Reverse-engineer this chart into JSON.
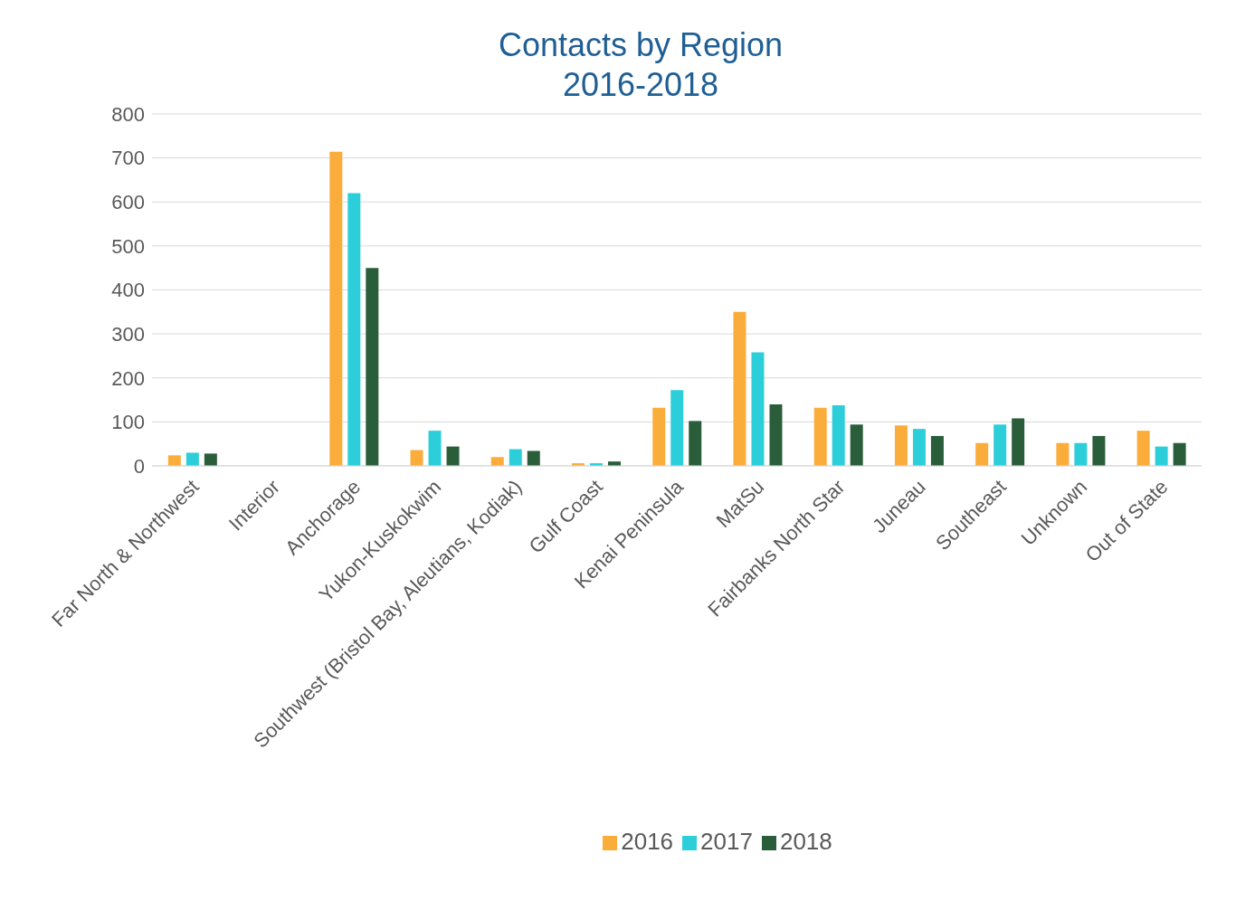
{
  "chart_data": {
    "type": "bar",
    "title": "Contacts by Region",
    "subtitle": "2016-2018",
    "categories": [
      "Far North & Northwest",
      "Interior",
      "Anchorage",
      "Yukon-Kuskokwim",
      "Southwest (Bristol Bay, Aleutians, Kodiak)",
      "Gulf Coast",
      "Kenai Peninsula",
      "MatSu",
      "Fairbanks North Star",
      "Juneau",
      "Southeast",
      "Unknown",
      "Out of State"
    ],
    "series": [
      {
        "name": "2016",
        "color": "#fbad3c",
        "values": [
          24,
          0,
          714,
          36,
          20,
          6,
          132,
          350,
          132,
          92,
          52,
          52,
          80
        ]
      },
      {
        "name": "2017",
        "color": "#2ccfd9",
        "values": [
          30,
          0,
          620,
          80,
          38,
          6,
          172,
          258,
          138,
          84,
          94,
          52,
          44
        ]
      },
      {
        "name": "2018",
        "color": "#2a5e3b",
        "values": [
          28,
          0,
          450,
          44,
          34,
          10,
          102,
          140,
          94,
          68,
          108,
          68,
          52
        ]
      }
    ],
    "ylim": [
      0,
      800
    ],
    "yticks": [
      0,
      100,
      200,
      300,
      400,
      500,
      600,
      700,
      800
    ],
    "grid": "y",
    "legend": "bottom"
  }
}
